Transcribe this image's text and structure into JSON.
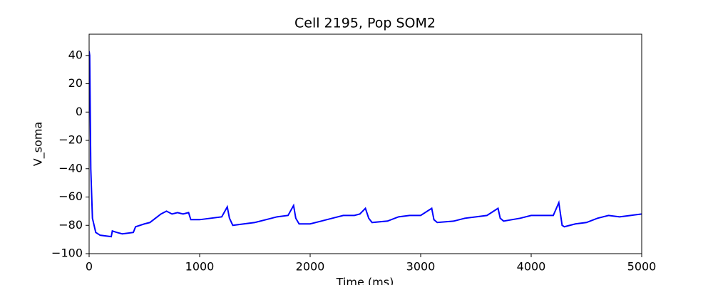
{
  "chart_data": {
    "type": "line",
    "title": "Cell 2195, Pop SOM2",
    "x_label": "Time (ms)",
    "y_label": "V_soma",
    "color": "#0000ff",
    "x": [
      0,
      5,
      15,
      30,
      60,
      100,
      200,
      210,
      250,
      300,
      400,
      420,
      500,
      550,
      600,
      650,
      700,
      750,
      800,
      850,
      900,
      920,
      1000,
      1100,
      1200,
      1250,
      1270,
      1300,
      1400,
      1500,
      1600,
      1700,
      1800,
      1850,
      1870,
      1900,
      2000,
      2100,
      2200,
      2300,
      2400,
      2450,
      2500,
      2530,
      2560,
      2700,
      2800,
      2900,
      3000,
      3100,
      3120,
      3150,
      3300,
      3400,
      3500,
      3600,
      3700,
      3720,
      3750,
      3900,
      4000,
      4100,
      4200,
      4250,
      4280,
      4300,
      4400,
      4500,
      4600,
      4700,
      4800,
      4900,
      5000
    ],
    "values": [
      43,
      40,
      -40,
      -75,
      -85,
      -87,
      -88,
      -84,
      -85,
      -86,
      -85,
      -81,
      -79,
      -78,
      -75,
      -72,
      -70,
      -72,
      -71,
      -72,
      -71,
      -76,
      -76,
      -75,
      -74,
      -67,
      -75,
      -80,
      -79,
      -78,
      -76,
      -74,
      -73,
      -66,
      -75,
      -79,
      -79,
      -77,
      -75,
      -73,
      -73,
      -72,
      -68,
      -75,
      -78,
      -77,
      -74,
      -73,
      -73,
      -68,
      -76,
      -78,
      -77,
      -75,
      -74,
      -73,
      -68,
      -75,
      -77,
      -75,
      -73,
      -73,
      -73,
      -64,
      -80,
      -81,
      -79,
      -78,
      -75,
      -73,
      -74,
      -73,
      -72
    ],
    "xlim": [
      0,
      5000
    ],
    "xticks": [
      0,
      1000,
      2000,
      3000,
      4000,
      5000
    ],
    "ylim": [
      -100,
      55
    ],
    "yticks": [
      {
        "value": -100,
        "label": "−100"
      },
      {
        "value": -80,
        "label": "−80"
      },
      {
        "value": -60,
        "label": "−60"
      },
      {
        "value": -40,
        "label": "−40"
      },
      {
        "value": -20,
        "label": "−20"
      },
      0,
      20,
      40
    ]
  }
}
